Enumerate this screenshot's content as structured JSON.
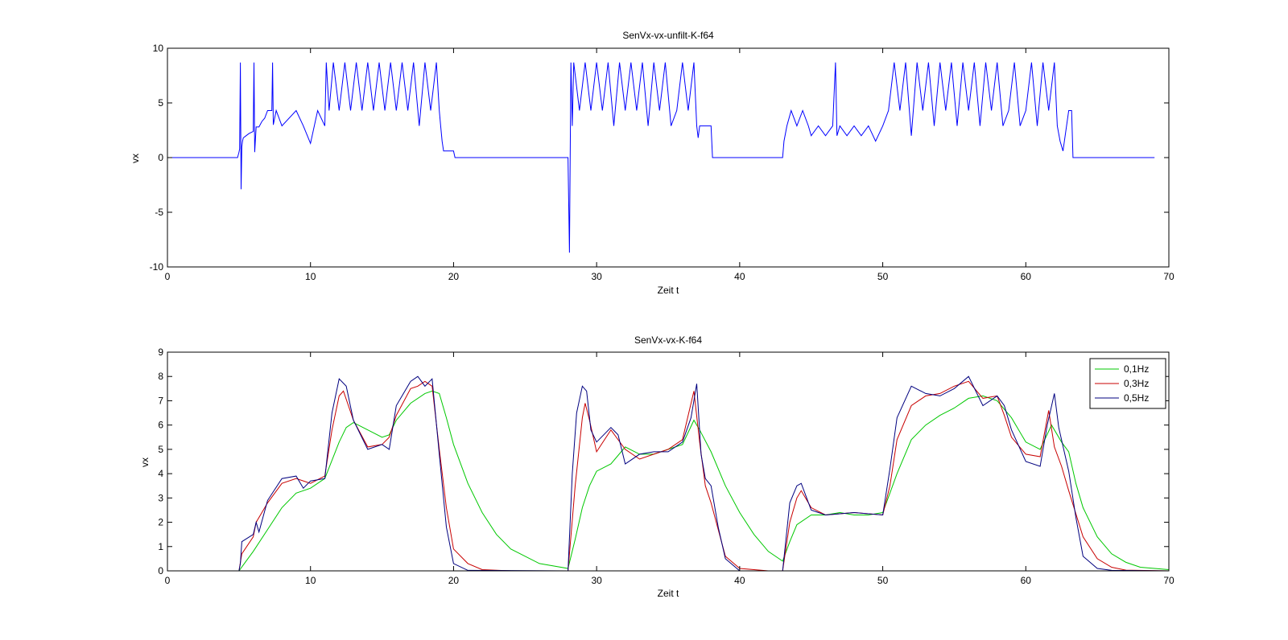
{
  "chart_data": [
    {
      "type": "line",
      "title": "SenVx-vx-unfilt-K-f64",
      "xlabel": "Zeit t",
      "ylabel": "vx",
      "xlim": [
        0,
        70
      ],
      "ylim": [
        -10,
        10
      ],
      "xticks": [
        0,
        10,
        20,
        30,
        40,
        50,
        60,
        70
      ],
      "yticks": [
        -10,
        -5,
        0,
        5,
        10
      ],
      "grid": false,
      "series": [
        {
          "color": "#0000ff",
          "x": [
            0,
            4.9,
            5.0,
            5.05,
            5.1,
            5.15,
            5.2,
            5.25,
            5.3,
            5.5,
            5.7,
            6.0,
            6.05,
            6.1,
            6.2,
            6.4,
            6.6,
            6.8,
            7.0,
            7.3,
            7.35,
            7.4,
            7.6,
            8.0,
            9.0,
            9.5,
            10.0,
            10.5,
            11.0,
            11.1,
            11.3,
            11.6,
            12.0,
            12.4,
            12.8,
            13.2,
            13.6,
            14.0,
            14.4,
            14.8,
            15.2,
            15.6,
            16.0,
            16.4,
            16.8,
            17.2,
            17.6,
            18.0,
            18.4,
            18.8,
            19.0,
            19.1,
            19.2,
            19.3,
            20.0,
            20.1,
            28.0,
            28.1,
            28.2,
            28.3,
            28.4,
            28.8,
            29.2,
            29.6,
            30.0,
            30.4,
            30.8,
            31.2,
            31.6,
            32.0,
            32.4,
            32.8,
            33.2,
            33.6,
            34.0,
            34.4,
            34.8,
            35.2,
            35.6,
            36.0,
            36.4,
            36.8,
            37.0,
            37.1,
            37.2,
            38.0,
            38.1,
            43.0,
            43.1,
            43.3,
            43.6,
            44.0,
            44.4,
            44.8,
            45.0,
            45.5,
            46.0,
            46.5,
            46.7,
            46.8,
            47.0,
            47.5,
            48.0,
            48.5,
            49.0,
            49.5,
            50.0,
            50.4,
            50.8,
            51.2,
            51.6,
            52.0,
            52.4,
            52.8,
            53.2,
            53.6,
            54.0,
            54.4,
            54.8,
            55.2,
            55.6,
            56.0,
            56.4,
            56.8,
            57.2,
            57.6,
            58.0,
            58.4,
            58.8,
            59.2,
            59.6,
            60.0,
            60.4,
            60.8,
            61.2,
            61.6,
            62.0,
            62.2,
            62.4,
            62.6,
            63.0,
            63.2,
            63.3,
            69.0
          ],
          "y": [
            0,
            0,
            0.5,
            0.8,
            8.7,
            -2.9,
            1.0,
            1.5,
            1.8,
            2.0,
            2.2,
            2.4,
            8.7,
            0.5,
            2.8,
            2.8,
            3.3,
            3.6,
            4.3,
            4.3,
            8.7,
            3.0,
            4.3,
            2.9,
            4.3,
            2.9,
            1.3,
            4.3,
            2.9,
            8.7,
            4.3,
            8.7,
            4.3,
            8.7,
            4.3,
            8.7,
            4.3,
            8.7,
            4.3,
            8.7,
            4.3,
            8.7,
            4.3,
            8.7,
            4.3,
            8.7,
            2.9,
            8.7,
            4.3,
            8.7,
            4.3,
            2.9,
            1.5,
            0.6,
            0.6,
            0,
            0,
            -8.7,
            8.7,
            2.9,
            8.7,
            4.3,
            8.7,
            4.3,
            8.7,
            4.3,
            8.7,
            2.9,
            8.7,
            4.3,
            8.7,
            4.3,
            8.7,
            2.9,
            8.7,
            4.3,
            8.7,
            2.9,
            4.3,
            8.7,
            4.3,
            8.7,
            2.9,
            1.8,
            2.9,
            2.9,
            0,
            0,
            1.5,
            2.9,
            4.3,
            2.9,
            4.3,
            2.9,
            2.0,
            2.9,
            2.0,
            2.9,
            8.7,
            2.0,
            2.9,
            2.0,
            2.9,
            2.0,
            2.9,
            1.5,
            2.9,
            4.3,
            8.7,
            4.3,
            8.7,
            2.0,
            8.7,
            4.3,
            8.7,
            2.9,
            8.7,
            4.3,
            8.7,
            2.9,
            8.7,
            4.3,
            8.7,
            2.9,
            8.7,
            4.3,
            8.7,
            2.9,
            4.3,
            8.7,
            2.9,
            4.3,
            8.7,
            2.9,
            8.7,
            4.3,
            8.7,
            2.9,
            1.5,
            0.6,
            4.3,
            4.3,
            0,
            0
          ]
        }
      ]
    },
    {
      "type": "line",
      "title": "SenVx-vx-K-f64",
      "xlabel": "Zeit t",
      "ylabel": "vx",
      "xlim": [
        0,
        70
      ],
      "ylim": [
        0,
        9
      ],
      "xticks": [
        0,
        10,
        20,
        30,
        40,
        50,
        60,
        70
      ],
      "yticks": [
        0,
        1,
        2,
        3,
        4,
        5,
        6,
        7,
        8,
        9
      ],
      "grid": false,
      "legend_position": "top-right",
      "series": [
        {
          "name": "0,1Hz",
          "color": "#00c800",
          "x": [
            0,
            5.0,
            5.5,
            6.0,
            7.0,
            8.0,
            9.0,
            10.0,
            11.0,
            12.0,
            12.5,
            13.0,
            14.0,
            15.0,
            15.5,
            16.0,
            17.0,
            18.0,
            18.5,
            19.0,
            19.5,
            20.0,
            21.0,
            22.0,
            23.0,
            24.0,
            26.0,
            28.0,
            28.5,
            29.0,
            29.5,
            30.0,
            31.0,
            32.0,
            33.0,
            34.0,
            35.0,
            36.0,
            36.8,
            37.2,
            38.0,
            39.0,
            40.0,
            41.0,
            42.0,
            43.0,
            43.5,
            44.0,
            45.0,
            46.0,
            47.0,
            48.0,
            49.0,
            50.0,
            50.5,
            51.0,
            52.0,
            53.0,
            54.0,
            55.0,
            56.0,
            57.0,
            58.0,
            59.0,
            60.0,
            61.0,
            61.8,
            62.5,
            63.0,
            63.5,
            64.0,
            65.0,
            66.0,
            67.0,
            68.0,
            70.0
          ],
          "y": [
            0,
            0,
            0.4,
            0.8,
            1.7,
            2.6,
            3.2,
            3.4,
            3.8,
            5.3,
            5.9,
            6.1,
            5.8,
            5.5,
            5.6,
            6.2,
            6.9,
            7.3,
            7.4,
            7.3,
            6.3,
            5.2,
            3.6,
            2.4,
            1.5,
            0.9,
            0.3,
            0.1,
            1.3,
            2.6,
            3.5,
            4.1,
            4.4,
            5.1,
            4.8,
            4.8,
            5.0,
            5.2,
            6.2,
            5.8,
            4.9,
            3.5,
            2.4,
            1.5,
            0.8,
            0.4,
            1.2,
            1.9,
            2.3,
            2.3,
            2.4,
            2.3,
            2.3,
            2.4,
            3.2,
            4.0,
            5.4,
            6.0,
            6.4,
            6.7,
            7.1,
            7.2,
            7.0,
            6.3,
            5.3,
            5.0,
            6.0,
            5.3,
            4.9,
            3.6,
            2.6,
            1.4,
            0.7,
            0.35,
            0.15,
            0.05
          ]
        },
        {
          "name": "0,3Hz",
          "color": "#c80000",
          "x": [
            0,
            5.0,
            5.2,
            6.0,
            6.2,
            7.0,
            8.0,
            9.0,
            10.0,
            11.0,
            11.5,
            12.0,
            12.3,
            13.0,
            14.0,
            15.0,
            15.5,
            16.0,
            17.0,
            17.5,
            18.0,
            18.5,
            19.0,
            19.5,
            20.0,
            21.0,
            22.0,
            24.0,
            28.0,
            28.5,
            29.0,
            29.2,
            29.5,
            30.0,
            31.0,
            32.0,
            33.0,
            34.0,
            35.0,
            36.0,
            36.8,
            37.2,
            37.6,
            38.0,
            39.0,
            40.0,
            42.0,
            43.0,
            43.5,
            44.0,
            44.3,
            45.0,
            46.0,
            48.0,
            50.0,
            50.5,
            51.0,
            52.0,
            53.0,
            54.0,
            55.0,
            56.0,
            57.0,
            58.0,
            58.5,
            59.0,
            60.0,
            61.0,
            61.6,
            62.0,
            62.5,
            63.0,
            64.0,
            65.0,
            66.0,
            67.0,
            70.0
          ],
          "y": [
            0,
            0,
            0.7,
            1.4,
            2.0,
            2.8,
            3.6,
            3.8,
            3.6,
            3.9,
            5.8,
            7.2,
            7.4,
            6.2,
            5.1,
            5.2,
            5.5,
            6.4,
            7.5,
            7.6,
            7.8,
            7.6,
            5.0,
            2.6,
            0.9,
            0.3,
            0.05,
            0,
            0,
            3.5,
            6.3,
            6.9,
            6.2,
            4.9,
            5.8,
            5.0,
            4.6,
            4.8,
            5.0,
            5.4,
            7.4,
            5.3,
            3.5,
            2.8,
            0.6,
            0.1,
            0,
            0,
            2.0,
            3.0,
            3.3,
            2.6,
            2.3,
            2.4,
            2.3,
            3.5,
            5.4,
            6.8,
            7.2,
            7.3,
            7.6,
            7.8,
            7.1,
            7.2,
            6.4,
            5.5,
            4.8,
            4.7,
            6.6,
            5.1,
            4.3,
            3.3,
            1.4,
            0.5,
            0.15,
            0.03,
            0
          ]
        },
        {
          "name": "0,5Hz",
          "color": "#00007f",
          "x": [
            0,
            5.0,
            5.1,
            5.2,
            6.0,
            6.2,
            6.4,
            7.0,
            8.0,
            9.0,
            9.5,
            10.0,
            11.0,
            11.5,
            12.0,
            12.5,
            13.0,
            14.0,
            15.0,
            15.5,
            16.0,
            17.0,
            17.5,
            18.0,
            18.5,
            19.0,
            19.5,
            20.0,
            21.0,
            28.0,
            28.3,
            28.6,
            29.0,
            29.3,
            29.6,
            30.0,
            31.0,
            31.5,
            32.0,
            33.0,
            34.0,
            35.0,
            36.0,
            36.6,
            37.0,
            37.3,
            37.6,
            38.0,
            38.5,
            39.0,
            40.0,
            43.0,
            43.5,
            44.0,
            44.3,
            45.0,
            46.0,
            48.0,
            50.0,
            50.5,
            51.0,
            52.0,
            53.0,
            54.0,
            55.0,
            56.0,
            57.0,
            58.0,
            58.5,
            59.0,
            60.0,
            61.0,
            61.5,
            62.0,
            62.3,
            63.0,
            63.5,
            64.0,
            65.0,
            66.0,
            70.0
          ],
          "y": [
            0,
            0,
            0.3,
            1.2,
            1.5,
            2.0,
            1.6,
            2.9,
            3.8,
            3.9,
            3.4,
            3.7,
            3.8,
            6.5,
            7.9,
            7.6,
            6.2,
            5.0,
            5.2,
            5.0,
            6.8,
            7.8,
            8.0,
            7.6,
            7.9,
            4.8,
            1.8,
            0.3,
            0.02,
            0,
            4.0,
            6.5,
            7.6,
            7.4,
            5.8,
            5.3,
            5.9,
            5.6,
            4.4,
            4.8,
            4.9,
            4.9,
            5.3,
            6.3,
            7.7,
            4.8,
            3.8,
            3.5,
            1.8,
            0.5,
            0,
            0,
            2.8,
            3.5,
            3.6,
            2.5,
            2.3,
            2.4,
            2.3,
            4.2,
            6.3,
            7.6,
            7.3,
            7.2,
            7.5,
            8.0,
            6.8,
            7.2,
            6.8,
            5.8,
            4.5,
            4.3,
            6.0,
            7.3,
            5.9,
            4.1,
            2.2,
            0.6,
            0.1,
            0.02,
            0
          ]
        }
      ]
    }
  ]
}
